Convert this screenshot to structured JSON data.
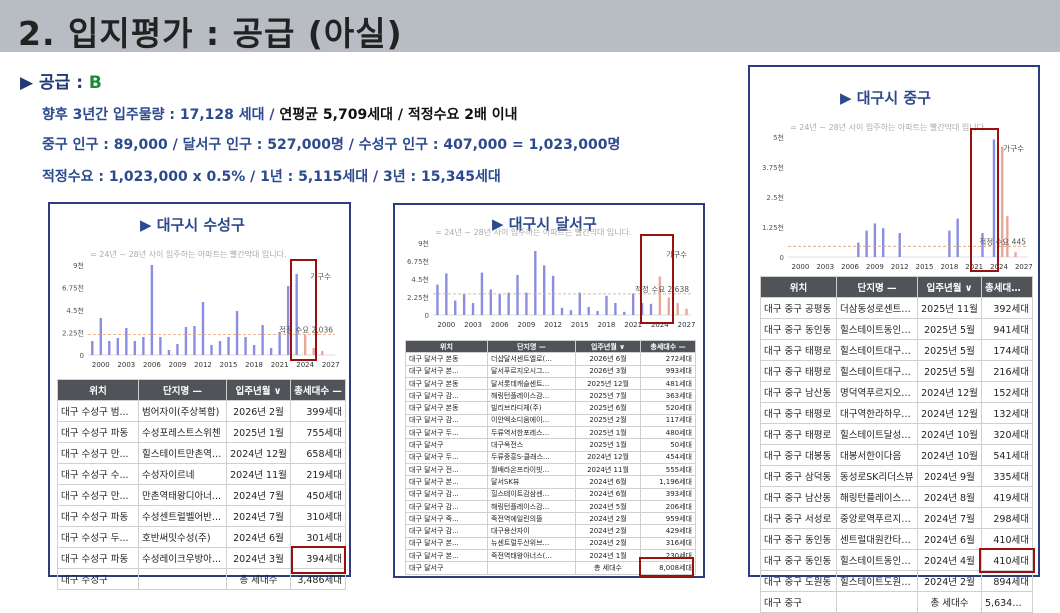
{
  "title": "2. 입지평가 : 공급 (아실)",
  "supply": {
    "label": "▶ 공급 : ",
    "grade": "B",
    "line1_a": "향후 3년간 입주물량 : 17,128 세대  / ",
    "line1_b": "연평균 5,709세대 / 적정수요 2배 이내",
    "line2": "중구 인구 : 89,000 / 달서구 인구 : 527,000명 / 수성구 인구 : 407,000 = 1,023,000명",
    "line3": "적정수요  : 1,023,000 x 0.5% / 1년 : 5,115세대 / 3년 : 15,345세대"
  },
  "colors": {
    "bar": "#8a8ee0",
    "future": "#e8a898",
    "demand": "#e0a070",
    "highlight": "#9a1010",
    "header": "#505458"
  },
  "headers": {
    "loc": "위치",
    "name": "단지명 —",
    "date": "입주년월 ∨",
    "units": "총세대수 —"
  },
  "panels": [
    {
      "title": "▶ 대구시 수성구",
      "note": "= 24년 ~ 28년 사이 입주하는 아파트는 빨간막대 입니다.",
      "chart_data": {
        "type": "bar",
        "x": [
          1999,
          2000,
          2001,
          2002,
          2003,
          2004,
          2005,
          2006,
          2007,
          2008,
          2009,
          2010,
          2011,
          2012,
          2013,
          2014,
          2015,
          2016,
          2017,
          2018,
          2019,
          2020,
          2021,
          2022,
          2023,
          2024,
          2025,
          2026,
          2027
        ],
        "values": [
          1400,
          3700,
          1400,
          1700,
          2700,
          1400,
          1800,
          9000,
          1800,
          500,
          1100,
          2800,
          2900,
          5300,
          1000,
          1400,
          1800,
          4400,
          1800,
          1000,
          3000,
          700,
          2300,
          6900,
          8100,
          2000,
          700,
          400,
          0
        ],
        "future_from": 2024,
        "demand_value": 2036,
        "demand_label": "적정 수요 2,036",
        "yticks": [
          "9천",
          "6.75천",
          "4.5천",
          "2.25천",
          "0"
        ],
        "ylim": [
          0,
          9000
        ],
        "xticks": [
          "2000",
          "2003",
          "2006",
          "2009",
          "2012",
          "2015",
          "2018",
          "2021",
          "2024",
          "2027"
        ],
        "legend_label": "가구수"
      },
      "rows": [
        [
          "대구 수성구 범...",
          "범어자이(주상복합)",
          "2026년 2월",
          "399세대"
        ],
        [
          "대구 수성구 파동",
          "수성포레스트스위첸",
          "2025년 1월",
          "755세대"
        ],
        [
          "대구 수성구 만...",
          "힐스테이트만촌역(...",
          "2024년 12월",
          "658세대"
        ],
        [
          "대구 수성구 수...",
          "수성자이르네",
          "2024년 11월",
          "219세대"
        ],
        [
          "대구 수성구 만...",
          "만촌역태왕디아너...",
          "2024년 7월",
          "450세대"
        ],
        [
          "대구 수성구 파동",
          "수성센트럴벨어반...",
          "2024년 7월",
          "310세대"
        ],
        [
          "대구 수성구 두...",
          "호반써밋수성(주)",
          "2024년 6월",
          "301세대"
        ],
        [
          "대구 수성구 파동",
          "수성레이크우방아...",
          "2024년 3월",
          "394세대"
        ]
      ],
      "total_loc": "대구 수성구",
      "total_label": "총 세대수",
      "total_value": "3,486세대"
    },
    {
      "title": "▶ 대구시 달서구",
      "note": "= 24년 ~ 28년 사이 입주하는 아파트는 빨간막대 입니다.",
      "chart_data": {
        "type": "bar",
        "x": [
          1999,
          2000,
          2001,
          2002,
          2003,
          2004,
          2005,
          2006,
          2007,
          2008,
          2009,
          2010,
          2011,
          2012,
          2013,
          2014,
          2015,
          2016,
          2017,
          2018,
          2019,
          2020,
          2021,
          2022,
          2023,
          2024,
          2025,
          2026,
          2027
        ],
        "values": [
          3800,
          5200,
          1800,
          2600,
          1500,
          5300,
          3200,
          2600,
          2800,
          5000,
          2800,
          8000,
          6200,
          4900,
          900,
          600,
          2800,
          1000,
          500,
          2400,
          1500,
          400,
          2700,
          1500,
          1400,
          4800,
          2200,
          1500,
          800
        ],
        "future_from": 2024,
        "demand_value": 2638,
        "demand_label": "적정 수요 2,638",
        "yticks": [
          "9천",
          "6.75천",
          "4.5천",
          "2.25천",
          "0"
        ],
        "ylim": [
          0,
          9000
        ],
        "xticks": [
          "2000",
          "2003",
          "2006",
          "2009",
          "2012",
          "2015",
          "2018",
          "2021",
          "2024",
          "2027"
        ],
        "legend_label": "가구수"
      },
      "rows": [
        [
          "대구 달서구 본동",
          "더샵달서센트엘로(...",
          "2026년 6월",
          "272세대"
        ],
        [
          "대구 달서구 본...",
          "달서푸르지오시그...",
          "2026년 3월",
          "993세대"
        ],
        [
          "대구 달서구 본동",
          "달서롯데캐슬센트...",
          "2025년 12월",
          "481세대"
        ],
        [
          "대구 달서구 감...",
          "해링턴플레이스감...",
          "2025년 7월",
          "363세대"
        ],
        [
          "대구 달서구 본동",
          "빌리브라디체(주)",
          "2025년 6월",
          "520세대"
        ],
        [
          "대구 달서구 감...",
          "이안엑소디움에이...",
          "2025년 2월",
          "117세대"
        ],
        [
          "대구 달서구 두...",
          "두류역서한포레스...",
          "2025년 1월",
          "480세대"
        ],
        [
          "대구 달서구",
          "대구옥전스",
          "2025년 1월",
          "50세대"
        ],
        [
          "대구 달서구 두...",
          "두류중흥S-클래스...",
          "2024년 12월",
          "454세대"
        ],
        [
          "대구 달서구 전...",
          "월배라온프라이빗...",
          "2024년 11월",
          "555세대"
        ],
        [
          "대구 달서구 본...",
          "달서SK뷰",
          "2024년 6월",
          "1,196세대"
        ],
        [
          "대구 달서구 감...",
          "힐스테이트감삼센...",
          "2024년 6월",
          "393세대"
        ],
        [
          "대구 달서구 감...",
          "해링턴플레이스감...",
          "2024년 5월",
          "206세대"
        ],
        [
          "대구 달서구 죽...",
          "죽전역에일린의뜰",
          "2024년 2월",
          "959세대"
        ],
        [
          "대구 달서구 감...",
          "대구용산자이",
          "2024년 2월",
          "429세대"
        ],
        [
          "대구 달서구 본...",
          "뉴센트럴두산위브...",
          "2024년 2월",
          "316세대"
        ],
        [
          "대구 달서구 본...",
          "죽전역태왕아너스(...",
          "2024년 1월",
          "230세대"
        ]
      ],
      "total_loc": "대구 달서구",
      "total_label": "총 세대수",
      "total_value": "8,008세대"
    },
    {
      "title": "▶ 대구시 중구",
      "note": "= 24년 ~ 28년 사이 입주하는 아파트는 빨간막대 입니다.",
      "chart_data": {
        "type": "bar",
        "x": [
          1999,
          2000,
          2001,
          2002,
          2003,
          2004,
          2005,
          2006,
          2007,
          2008,
          2009,
          2010,
          2011,
          2012,
          2013,
          2014,
          2015,
          2016,
          2017,
          2018,
          2019,
          2020,
          2021,
          2022,
          2023,
          2024,
          2025,
          2026,
          2027
        ],
        "values": [
          0,
          0,
          0,
          0,
          0,
          0,
          0,
          0,
          600,
          1100,
          1400,
          1200,
          0,
          1000,
          0,
          0,
          0,
          0,
          0,
          1100,
          1600,
          0,
          0,
          1000,
          0,
          0,
          1700,
          200,
          0
        ],
        "extra_values": [
          0,
          0,
          0,
          0,
          0,
          0,
          0,
          0,
          0,
          0,
          0,
          0,
          0,
          0,
          0,
          0,
          0,
          0,
          0,
          0,
          0,
          0,
          0,
          0,
          4900,
          4600,
          0,
          0,
          0
        ],
        "future_from": 2024,
        "demand_value": 445,
        "demand_label": "적정 수요 445",
        "yticks": [
          "5천",
          "3.75천",
          "2.5천",
          "1.25천",
          "0"
        ],
        "ylim": [
          0,
          5000
        ],
        "xticks": [
          "2000",
          "2003",
          "2006",
          "2009",
          "2012",
          "2015",
          "2018",
          "2021",
          "2024",
          "2027"
        ],
        "legend_label": "가구수"
      },
      "rows": [
        [
          "대구 중구 공평동",
          "더삼동성로센트리...",
          "2025년 11월",
          "392세대"
        ],
        [
          "대구 중구 동인동",
          "힐스테이트동인(주)",
          "2025년 5월",
          "941세대"
        ],
        [
          "대구 중구 태평로",
          "힐스테이트대구역...",
          "2025년 5월",
          "174세대"
        ],
        [
          "대구 중구 태평로",
          "힐스테이트대구역...",
          "2025년 5월",
          "216세대"
        ],
        [
          "대구 중구 남산동",
          "명덕역푸르지오푸르...",
          "2024년 12월",
          "152세대"
        ],
        [
          "대구 중구 태평로",
          "대구역한라하우젠...",
          "2024년 12월",
          "132세대"
        ],
        [
          "대구 중구 태평로",
          "힐스테이트달성공...",
          "2024년 10월",
          "320세대"
        ],
        [
          "대구 중구 대봉동",
          "대봉서한이다음",
          "2024년 10월",
          "541세대"
        ],
        [
          "대구 중구 삼덕동",
          "동성로SK리더스뷰",
          "2024년 9월",
          "335세대"
        ],
        [
          "대구 중구 남산동",
          "해링턴플레이스반...",
          "2024년 8월",
          "419세대"
        ],
        [
          "대구 중구 서성로",
          "중앙로역푸르지오...",
          "2024년 7월",
          "298세대"
        ],
        [
          "대구 중구 동인동",
          "센트럴대원칸타빌(...",
          "2024년 6월",
          "410세대"
        ],
        [
          "대구 중구 동인동",
          "힐스테이트동인센...",
          "2024년 4월",
          "410세대"
        ],
        [
          "대구 중구 도원동",
          "힐스테이트도원센...",
          "2024년 2월",
          "894세대"
        ]
      ],
      "total_loc": "대구 중구",
      "total_label": "총 세대수",
      "total_value": "5,634세대"
    }
  ]
}
